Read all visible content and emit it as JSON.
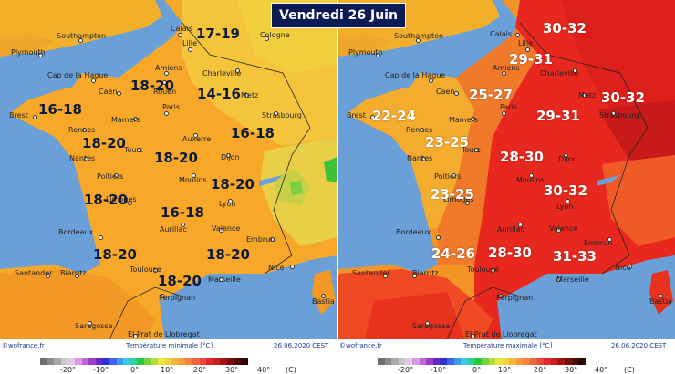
{
  "header": {
    "title": "Vendredi 26 Juin"
  },
  "maps": {
    "minimum": {
      "credit": "©wofrance.fr",
      "legend": "Température minimale [°C]",
      "timestamp": "26.06.2020 CEST",
      "ranges": [
        "17-19",
        "18-20",
        "14-16",
        "16-18",
        "18-20",
        "16-18",
        "18-20",
        "18-20",
        "16-18",
        "18-20",
        "18-20",
        "18-20",
        "18-20"
      ]
    },
    "maximum": {
      "credit": "©wofrance.fr",
      "legend": "Température maximale [°C]",
      "timestamp": "26.06.2020 CEST",
      "ranges": [
        "30-32",
        "29-31",
        "25-27",
        "30-32",
        "22-24",
        "29-31",
        "23-25",
        "28-30",
        "30-32",
        "23-25",
        "24-26",
        "28-30",
        "31-33"
      ]
    }
  },
  "cities": [
    "Plymouth",
    "Southampton",
    "Calais",
    "Lille",
    "Cologne",
    "Amiens",
    "Charleville",
    "Cap de la Hague",
    "Caen",
    "Rouen",
    "Metz",
    "Brest",
    "Mamers",
    "Paris",
    "Strasbourg",
    "Rennes",
    "Auxerre",
    "Nantes",
    "Tours",
    "Dijon",
    "Poitiers",
    "Moulins",
    "Limoges",
    "Lyon",
    "Bordeaux",
    "Aurillac",
    "Valence",
    "Embrun",
    "Biarritz",
    "Toulouse",
    "Nice",
    "Santander",
    "Marseille",
    "Perpignan",
    "Bastia",
    "Saragosse",
    "El Prat de Llobregat"
  ],
  "scale": {
    "labels": [
      "-20°",
      "-10°",
      "0°",
      "10°",
      "20°",
      "30°",
      "40°",
      "(C)"
    ],
    "colors": [
      "#6e6e6e",
      "#8c8c8c",
      "#a9a9a9",
      "#c8c8c8",
      "#e2c8e6",
      "#d79be0",
      "#c464d6",
      "#9c3cc8",
      "#6a28c0",
      "#2f2fd8",
      "#3c64e6",
      "#3c9be6",
      "#3cc8e6",
      "#28d2a0",
      "#28c83c",
      "#78d23c",
      "#b4dc3c",
      "#e6e63c",
      "#f5d23c",
      "#f5b43c",
      "#f59b3c",
      "#f5823c",
      "#f0643c",
      "#eb463c",
      "#e12828",
      "#c81e1e",
      "#a01414",
      "#780a0a",
      "#500a0a",
      "#2d0505"
    ]
  }
}
